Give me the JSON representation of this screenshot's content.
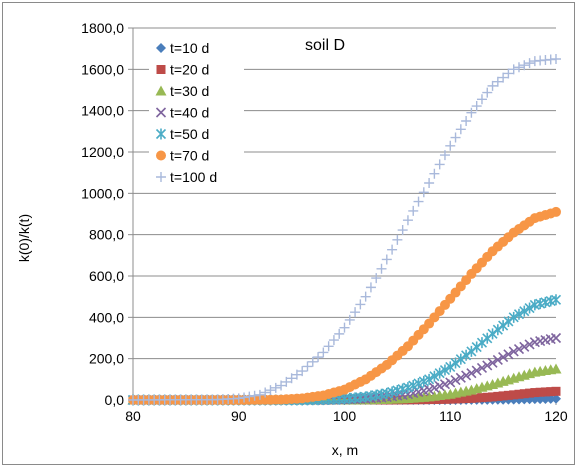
{
  "chart_data": {
    "type": "scatter",
    "title": "",
    "annotation": "soil D",
    "xlabel": "x, m",
    "ylabel": "k(0)/k(t)",
    "xlim": [
      80,
      120
    ],
    "ylim": [
      0,
      1800
    ],
    "x_ticks": [
      80,
      90,
      100,
      110,
      120
    ],
    "x_tick_labels": [
      "80",
      "90",
      "100",
      "110",
      "120"
    ],
    "y_ticks": [
      0,
      200,
      400,
      600,
      800,
      1000,
      1200,
      1400,
      1600,
      1800
    ],
    "y_tick_labels": [
      "0,0",
      "200,0",
      "400,0",
      "600,0",
      "800,0",
      "1000,0",
      "1200,0",
      "1400,0",
      "1600,0",
      "1800,0"
    ],
    "grid": "horizontal",
    "legend_position": "top-left",
    "series": [
      {
        "name": "t=10 d",
        "marker": "diamond",
        "color": "#4a7ebb",
        "x": [
          80,
          90,
          100,
          110,
          112,
          114,
          116,
          118,
          120
        ],
        "y": [
          0,
          0,
          0,
          0,
          0.5,
          1,
          2,
          4,
          6
        ]
      },
      {
        "name": "t=20 d",
        "marker": "square",
        "color": "#be4b48",
        "x": [
          80,
          90,
          100,
          104,
          106,
          108,
          110,
          112,
          114,
          116,
          118,
          120
        ],
        "y": [
          0,
          0,
          0,
          0,
          1,
          2,
          4,
          8,
          15,
          25,
          36,
          42
        ]
      },
      {
        "name": "t=30 d",
        "marker": "triangle",
        "color": "#98b954",
        "x": [
          80,
          90,
          100,
          102,
          104,
          106,
          108,
          110,
          112,
          114,
          116,
          118,
          120
        ],
        "y": [
          0,
          0,
          0,
          1,
          3,
          7,
          15,
          28,
          48,
          75,
          105,
          135,
          150
        ]
      },
      {
        "name": "t=40 d",
        "marker": "x",
        "color": "#7e649e",
        "x": [
          80,
          90,
          98,
          100,
          102,
          104,
          106,
          108,
          110,
          112,
          114,
          116,
          118,
          120
        ],
        "y": [
          0,
          0,
          0,
          2,
          6,
          14,
          28,
          50,
          85,
          130,
          180,
          235,
          280,
          300
        ]
      },
      {
        "name": "t=50 d",
        "marker": "star",
        "color": "#4bacc6",
        "x": [
          80,
          90,
          96,
          98,
          100,
          102,
          104,
          106,
          108,
          110,
          112,
          114,
          116,
          118,
          120
        ],
        "y": [
          0,
          0,
          0,
          2,
          6,
          15,
          32,
          60,
          100,
          160,
          235,
          320,
          400,
          460,
          485
        ]
      },
      {
        "name": "t=70 d",
        "marker": "circle",
        "color": "#f79646",
        "x": [
          80,
          90,
          94,
          96,
          98,
          100,
          102,
          104,
          106,
          108,
          110,
          112,
          114,
          116,
          118,
          120
        ],
        "y": [
          0,
          0,
          2,
          8,
          22,
          50,
          100,
          170,
          260,
          370,
          490,
          610,
          720,
          810,
          880,
          910
        ]
      },
      {
        "name": "t=100 d",
        "marker": "plus",
        "color": "#a9b9db",
        "x": [
          80,
          88,
          90,
          92,
          94,
          96,
          98,
          100,
          102,
          104,
          106,
          108,
          110,
          112,
          114,
          116,
          118,
          120
        ],
        "y": [
          0,
          2,
          8,
          25,
          70,
          140,
          230,
          350,
          500,
          680,
          870,
          1050,
          1230,
          1390,
          1520,
          1600,
          1640,
          1650
        ]
      }
    ]
  }
}
